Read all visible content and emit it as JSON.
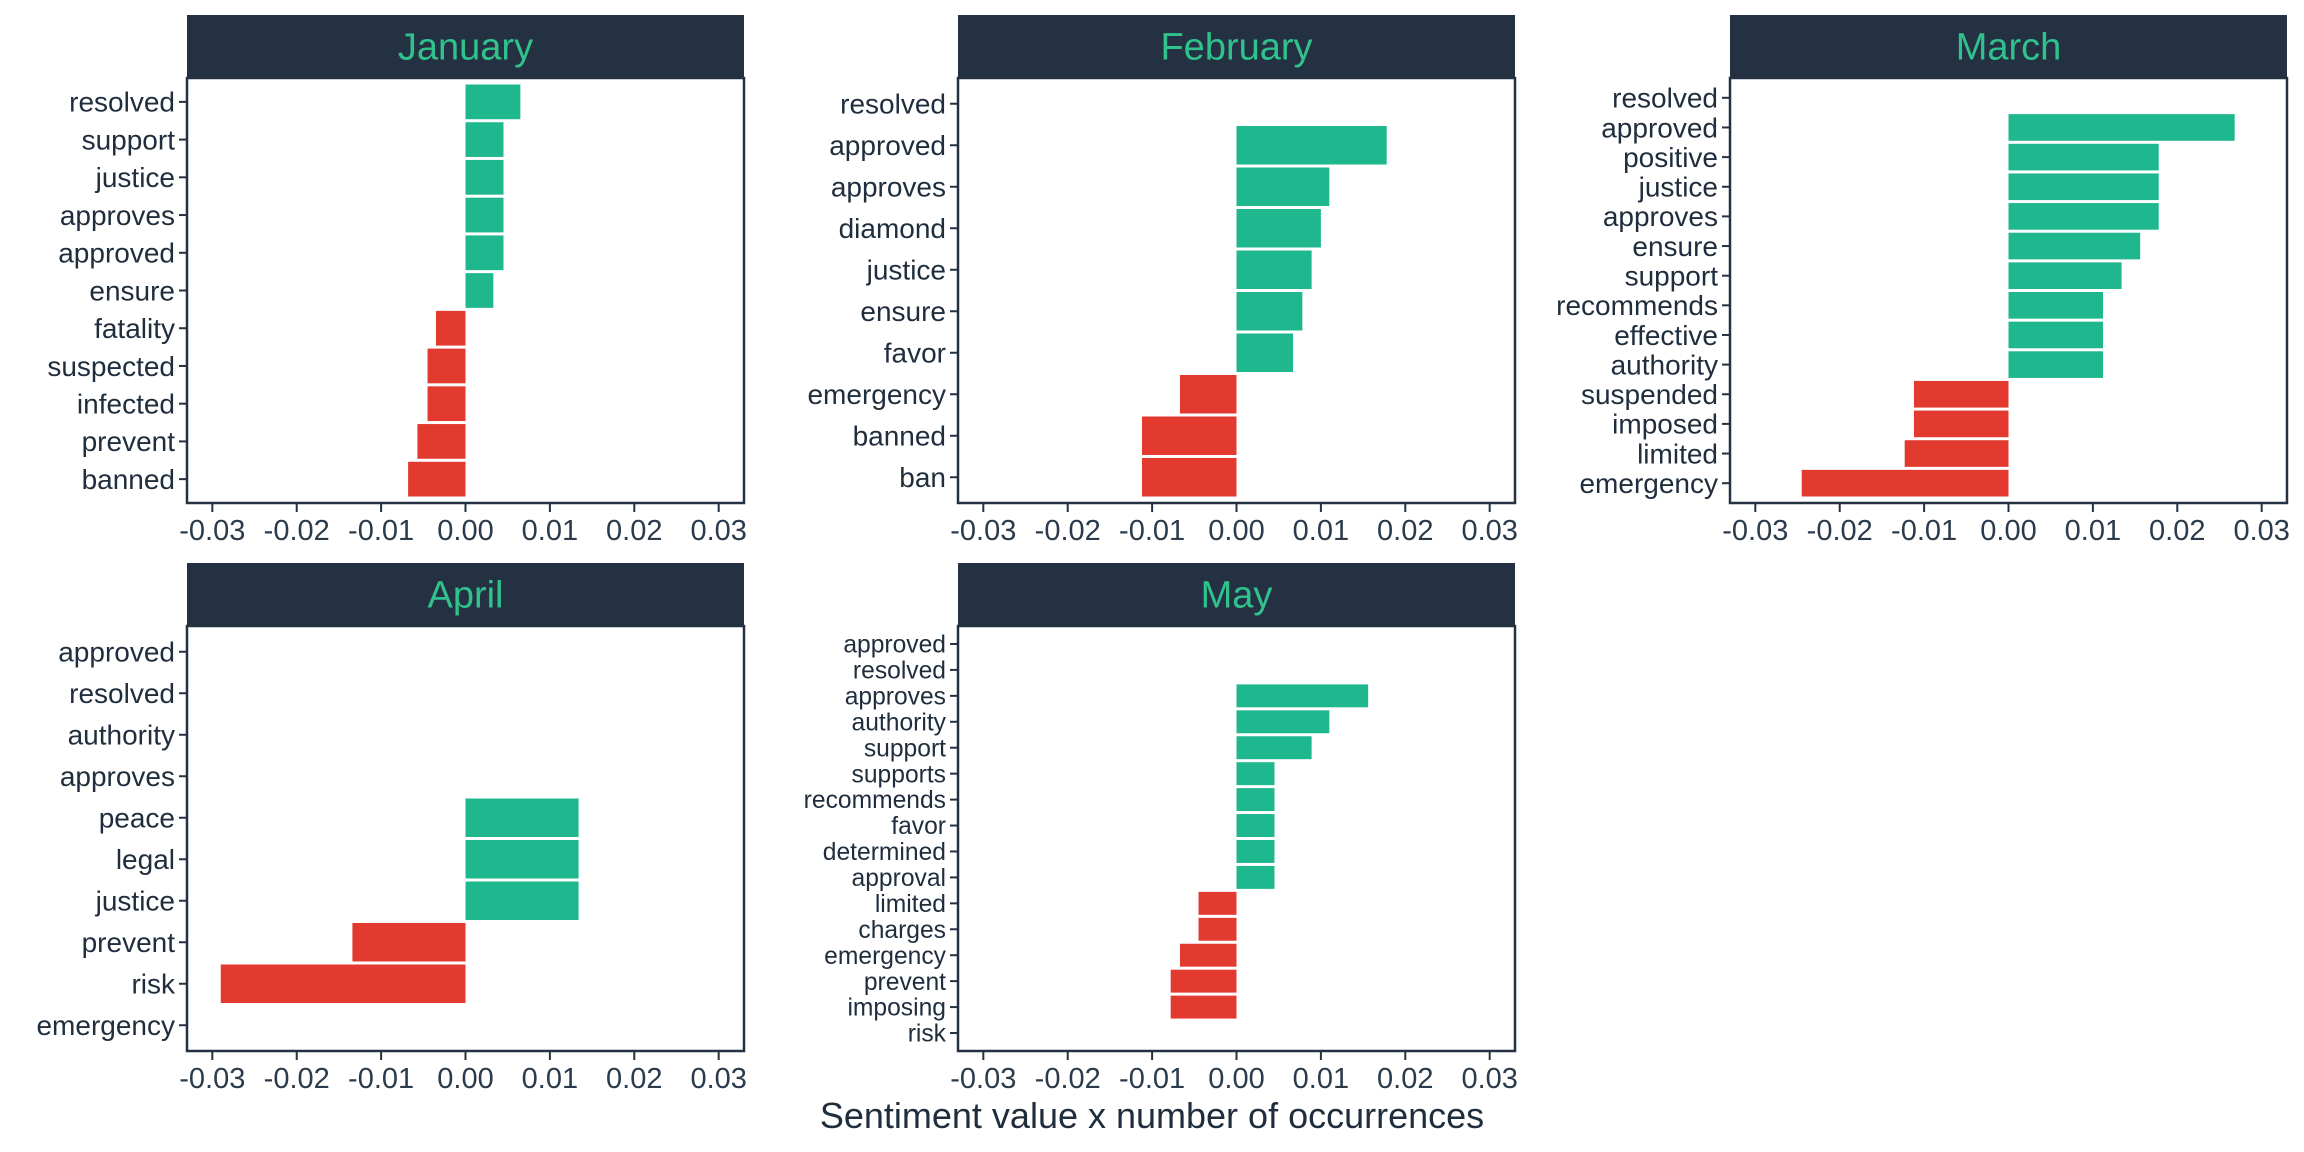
{
  "colors": {
    "positive": "#1fb78e",
    "negative": "#e33a30",
    "strip_bg": "#243142",
    "strip_text": "#2fc28c",
    "axis": "#243142",
    "text": "#1f2d3d"
  },
  "chart_data": {
    "type": "bar",
    "orientation": "horizontal",
    "facet_layout": "3 columns x 2 rows",
    "xlabel": "Sentiment value x number of occurrences",
    "xlim": [
      -0.033,
      0.033
    ],
    "x_ticks": [
      -0.03,
      -0.02,
      -0.01,
      0.0,
      0.01,
      0.02,
      0.03
    ],
    "x_tick_labels": [
      "-0.03",
      "-0.02",
      "-0.01",
      "0.00",
      "0.01",
      "0.02",
      "0.03"
    ],
    "grid": false,
    "panels": [
      {
        "title": "January",
        "categories": [
          "resolved",
          "support",
          "justice",
          "approves",
          "approved",
          "ensure",
          "fatality",
          "suspected",
          "infected",
          "prevent",
          "banned"
        ],
        "values": [
          0.0065,
          0.0045,
          0.0045,
          0.0045,
          0.0045,
          0.0033,
          -0.0035,
          -0.0045,
          -0.0045,
          -0.0057,
          -0.0068
        ]
      },
      {
        "title": "February",
        "categories": [
          "resolved",
          "approved",
          "approves",
          "diamond",
          "justice",
          "ensure",
          "favor",
          "emergency",
          "banned",
          "ban"
        ],
        "values": [
          0.0,
          0.0178,
          0.011,
          0.01,
          0.0089,
          0.0078,
          0.0067,
          -0.0067,
          -0.0112,
          -0.0112
        ]
      },
      {
        "title": "March",
        "categories": [
          "resolved",
          "approved",
          "positive",
          "justice",
          "approves",
          "ensure",
          "support",
          "recommends",
          "effective",
          "authority",
          "suspended",
          "imposed",
          "limited",
          "emergency"
        ],
        "values": [
          0.0,
          0.0268,
          0.0178,
          0.0178,
          0.0178,
          0.0156,
          0.0134,
          0.0112,
          0.0112,
          0.0112,
          -0.0112,
          -0.0112,
          -0.0123,
          -0.0245
        ]
      },
      {
        "title": "April",
        "categories": [
          "approved",
          "resolved",
          "authority",
          "approves",
          "peace",
          "legal",
          "justice",
          "prevent",
          "risk",
          "emergency"
        ],
        "values": [
          0.0,
          0.0,
          0.0,
          0.0,
          0.0134,
          0.0134,
          0.0134,
          -0.0134,
          -0.029,
          0.0
        ]
      },
      {
        "title": "May",
        "categories": [
          "approved",
          "resolved",
          "approves",
          "authority",
          "support",
          "supports",
          "recommends",
          "favor",
          "determined",
          "approval",
          "limited",
          "charges",
          "emergency",
          "prevent",
          "imposing",
          "risk"
        ],
        "values": [
          0.0,
          0.0,
          0.0156,
          0.011,
          0.0089,
          0.0045,
          0.0045,
          0.0045,
          0.0045,
          0.0045,
          -0.0045,
          -0.0045,
          -0.0067,
          -0.0078,
          -0.0078,
          0.0
        ]
      }
    ]
  }
}
